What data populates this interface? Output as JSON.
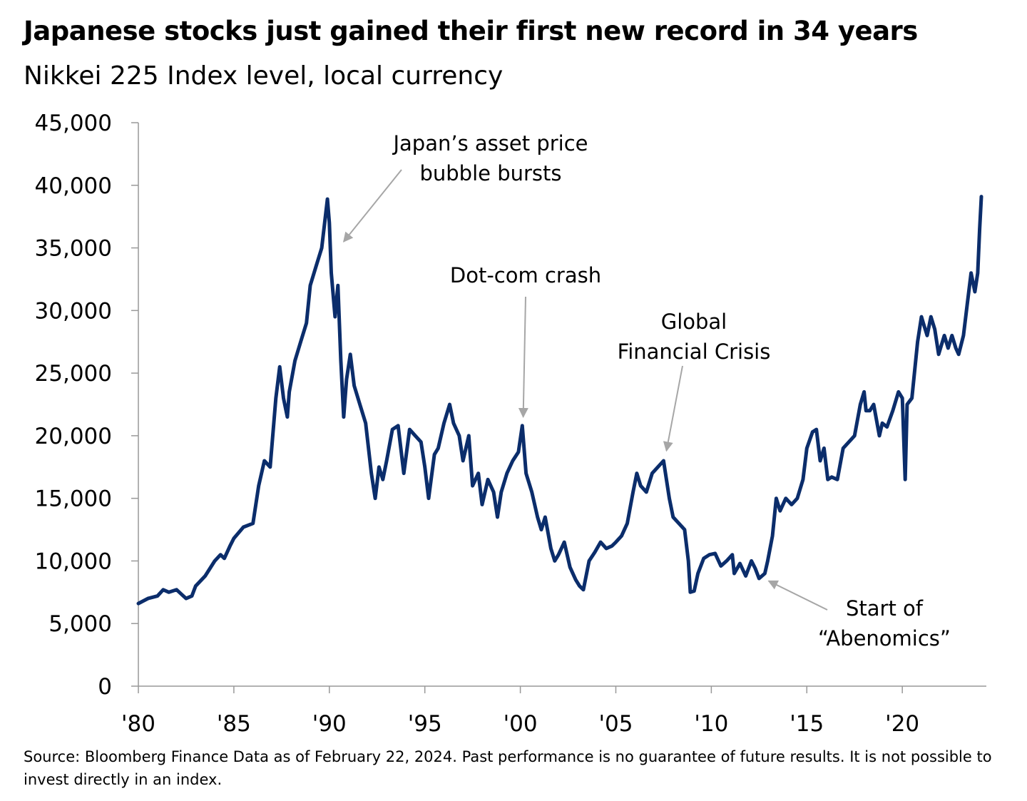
{
  "header": {
    "title": "Japanese stocks just gained their first new record in 34 years",
    "subtitle": "Nikkei 225 Index level, local currency"
  },
  "footer": {
    "source_text": "Source: Bloomberg Finance Data as of February 22, 2024. Past performance is no guarantee of future results. It is not possible to invest directly in an index."
  },
  "colors": {
    "line": "#0b2d6b",
    "axis": "#999999",
    "arrow": "#a6a6a6",
    "text": "#000000"
  },
  "chart_data": {
    "type": "line",
    "title": "Japanese stocks just gained their first new record in 34 years",
    "subtitle": "Nikkei 225 Index level, local currency",
    "xlabel": "",
    "ylabel": "",
    "xlim": [
      1980,
      2024.4
    ],
    "ylim": [
      0,
      45000
    ],
    "grid": false,
    "legend": "none",
    "y_ticks": [
      {
        "value": 0,
        "label": "0"
      },
      {
        "value": 5000,
        "label": "5,000"
      },
      {
        "value": 10000,
        "label": "10,000"
      },
      {
        "value": 15000,
        "label": "15,000"
      },
      {
        "value": 20000,
        "label": "20,000"
      },
      {
        "value": 25000,
        "label": "25,000"
      },
      {
        "value": 30000,
        "label": "30,000"
      },
      {
        "value": 35000,
        "label": "35,000"
      },
      {
        "value": 40000,
        "label": "40,000"
      },
      {
        "value": 45000,
        "label": "45,000"
      }
    ],
    "x_ticks": [
      {
        "value": 1980,
        "label": "'80"
      },
      {
        "value": 1985,
        "label": "'85"
      },
      {
        "value": 1990,
        "label": "'90"
      },
      {
        "value": 1995,
        "label": "'95"
      },
      {
        "value": 2000,
        "label": "'00"
      },
      {
        "value": 2005,
        "label": "'05"
      },
      {
        "value": 2010,
        "label": "'10"
      },
      {
        "value": 2015,
        "label": "'15"
      },
      {
        "value": 2020,
        "label": "'20"
      }
    ],
    "series": [
      {
        "name": "Nikkei 225",
        "x": [
          1980.0,
          1980.5,
          1981.0,
          1981.3,
          1981.6,
          1982.0,
          1982.5,
          1982.8,
          1983.0,
          1983.5,
          1984.0,
          1984.3,
          1984.5,
          1984.8,
          1985.0,
          1985.5,
          1986.0,
          1986.3,
          1986.6,
          1986.9,
          1987.2,
          1987.4,
          1987.6,
          1987.8,
          1987.9,
          1988.2,
          1988.5,
          1988.8,
          1989.0,
          1989.3,
          1989.6,
          1989.9,
          1990.0,
          1990.1,
          1990.3,
          1990.45,
          1990.6,
          1990.75,
          1990.9,
          1991.1,
          1991.3,
          1991.6,
          1991.9,
          1992.2,
          1992.4,
          1992.6,
          1992.8,
          1993.0,
          1993.3,
          1993.6,
          1993.9,
          1994.2,
          1994.5,
          1994.8,
          1995.0,
          1995.2,
          1995.5,
          1995.7,
          1996.0,
          1996.3,
          1996.5,
          1996.8,
          1997.0,
          1997.3,
          1997.5,
          1997.8,
          1998.0,
          1998.3,
          1998.6,
          1998.8,
          1999.0,
          1999.3,
          1999.6,
          1999.9,
          2000.1,
          2000.3,
          2000.6,
          2000.9,
          2001.1,
          2001.3,
          2001.6,
          2001.8,
          2002.0,
          2002.3,
          2002.6,
          2002.9,
          2003.1,
          2003.3,
          2003.6,
          2003.9,
          2004.2,
          2004.5,
          2004.8,
          2005.0,
          2005.3,
          2005.6,
          2005.9,
          2006.1,
          2006.3,
          2006.6,
          2006.9,
          2007.2,
          2007.5,
          2007.8,
          2008.0,
          2008.3,
          2008.6,
          2008.8,
          2008.9,
          2009.1,
          2009.3,
          2009.6,
          2009.9,
          2010.2,
          2010.5,
          2010.8,
          2011.1,
          2011.2,
          2011.5,
          2011.8,
          2012.1,
          2012.3,
          2012.5,
          2012.8,
          2012.95,
          2013.2,
          2013.4,
          2013.6,
          2013.9,
          2014.2,
          2014.5,
          2014.8,
          2015.0,
          2015.3,
          2015.5,
          2015.7,
          2015.9,
          2016.1,
          2016.3,
          2016.6,
          2016.9,
          2017.2,
          2017.5,
          2017.8,
          2018.0,
          2018.1,
          2018.3,
          2018.5,
          2018.8,
          2018.95,
          2019.2,
          2019.5,
          2019.8,
          2020.0,
          2020.15,
          2020.25,
          2020.5,
          2020.8,
          2021.0,
          2021.1,
          2021.3,
          2021.5,
          2021.7,
          2021.9,
          2022.1,
          2022.2,
          2022.4,
          2022.6,
          2022.8,
          2022.95,
          2023.2,
          2023.4,
          2023.6,
          2023.8,
          2023.95,
          2024.05,
          2024.14
        ],
        "values": [
          6600,
          7000,
          7200,
          7700,
          7500,
          7700,
          7000,
          7200,
          8000,
          8800,
          10000,
          10500,
          10200,
          11200,
          11800,
          12700,
          13000,
          16000,
          18000,
          17500,
          23000,
          25500,
          23000,
          21500,
          23500,
          26000,
          27500,
          29000,
          32000,
          33500,
          35000,
          38900,
          37000,
          33000,
          29500,
          32000,
          26000,
          21500,
          24500,
          26500,
          24000,
          22500,
          21000,
          17000,
          15000,
          17500,
          16500,
          18000,
          20500,
          20800,
          17000,
          20500,
          20000,
          19500,
          17500,
          15000,
          18500,
          19000,
          21000,
          22500,
          21000,
          20000,
          18000,
          20000,
          16000,
          17000,
          14500,
          16500,
          15500,
          13500,
          15500,
          17000,
          18000,
          18700,
          20800,
          17000,
          15500,
          13500,
          12500,
          13500,
          11000,
          10000,
          10500,
          11500,
          9500,
          8500,
          8000,
          7700,
          10000,
          10700,
          11500,
          11000,
          11200,
          11500,
          12000,
          13000,
          15500,
          17000,
          16000,
          15500,
          17000,
          17500,
          18000,
          15000,
          13500,
          13000,
          12500,
          10000,
          7500,
          7600,
          9000,
          10200,
          10500,
          10600,
          9600,
          10000,
          10500,
          9000,
          9800,
          8800,
          10000,
          9400,
          8600,
          9000,
          10000,
          12000,
          15000,
          14000,
          15000,
          14500,
          15000,
          16500,
          19000,
          20300,
          20500,
          18000,
          19000,
          16500,
          16700,
          16500,
          19000,
          19500,
          20000,
          22500,
          23500,
          22000,
          22000,
          22500,
          20000,
          21000,
          20700,
          22000,
          23500,
          23000,
          16500,
          22500,
          23000,
          27500,
          29500,
          29000,
          28000,
          29500,
          28500,
          26500,
          27500,
          28000,
          27000,
          28000,
          27000,
          26500,
          28000,
          30500,
          33000,
          31500,
          33000,
          36500,
          39100
        ]
      }
    ],
    "annotations": [
      {
        "lines": [
          "Japan’s asset price",
          "bubble bursts"
        ],
        "target": {
          "x": 1990.75,
          "y": 35500
        }
      },
      {
        "lines": [
          "Dot-com crash"
        ],
        "target": {
          "x": 2000.15,
          "y": 21500
        }
      },
      {
        "lines": [
          "Global",
          "Financial Crisis"
        ],
        "target": {
          "x": 2007.65,
          "y": 18800
        }
      },
      {
        "lines": [
          "Start of",
          "“Abenomics”"
        ],
        "target": {
          "x": 2013.0,
          "y": 8400
        }
      }
    ]
  }
}
